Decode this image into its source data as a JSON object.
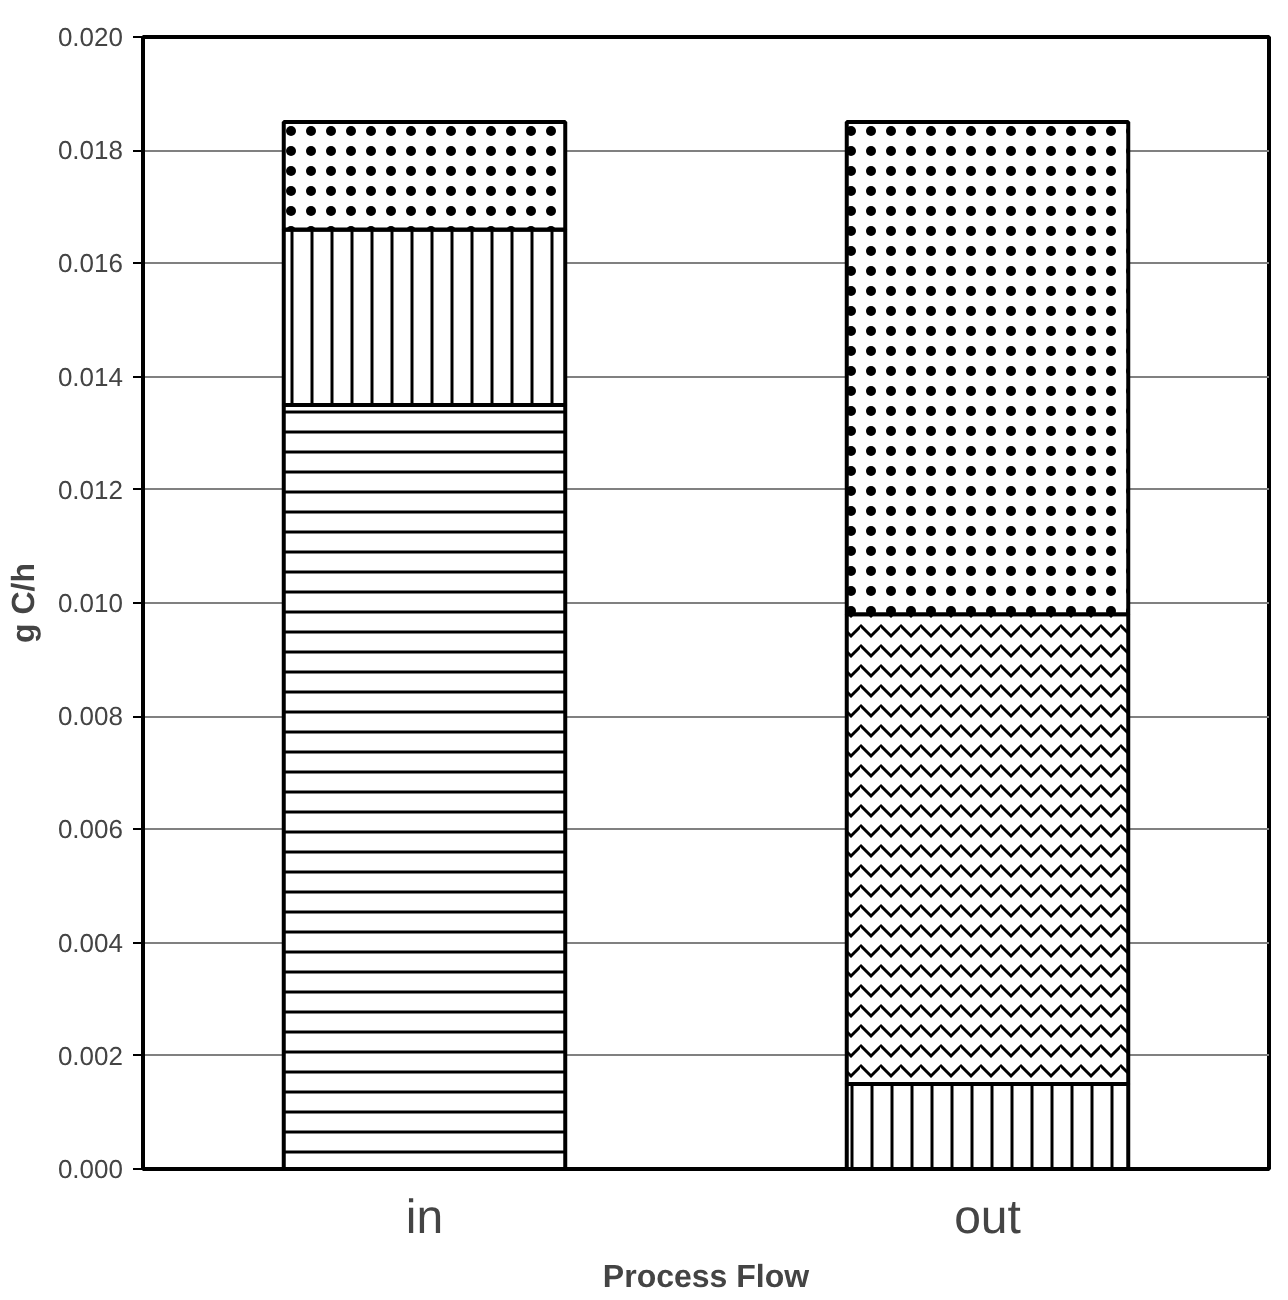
{
  "chart_data": {
    "type": "bar",
    "stacked": true,
    "xlabel": "Process Flow",
    "ylabel": "g C/h",
    "categories": [
      "in",
      "out"
    ],
    "series": [
      {
        "color": "#000000",
        "values": [
          0.0135,
          0
        ]
      },
      {
        "color": "#000000",
        "values": [
          0.0031,
          0.0015
        ]
      },
      {
        "color": "#000000",
        "values": [
          0,
          0.0083
        ]
      },
      {
        "color": "#000000",
        "values": [
          0.0019,
          0.0087
        ]
      }
    ],
    "ylim": [
      0,
      0.02
    ],
    "yticks": [
      {
        "value": 0,
        "label": "0.000"
      },
      {
        "value": 0.002,
        "label": "0.002"
      },
      {
        "value": 0.004,
        "label": "0.004"
      },
      {
        "value": 0.006,
        "label": "0.006"
      },
      {
        "value": 0.008,
        "label": "0.008"
      },
      {
        "value": 0.01,
        "label": "0.010"
      },
      {
        "value": 0.012,
        "label": "0.012"
      },
      {
        "value": 0.014,
        "label": "0.014"
      },
      {
        "value": 0.016,
        "label": "0.016"
      },
      {
        "value": 0.018,
        "label": "0.018"
      },
      {
        "value": 0.02,
        "label": "0.020"
      }
    ],
    "grid": "y"
  }
}
